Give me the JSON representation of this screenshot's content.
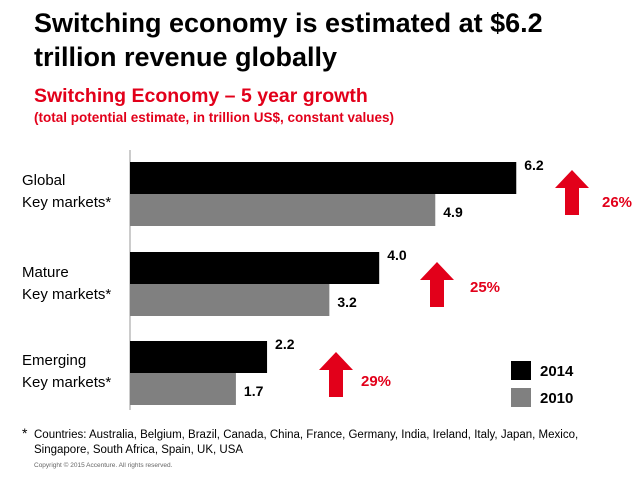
{
  "title": "Switching economy is estimated at $6.2 trillion revenue globally",
  "subtitle": "Switching Economy – 5 year growth",
  "subnote": "(total potential estimate, in trillion US$, constant values)",
  "colors": {
    "series_2014": "#000000",
    "series_2010": "#808080",
    "accent": "#e2001a"
  },
  "chart_data": {
    "type": "bar",
    "orientation": "horizontal",
    "categories": [
      {
        "line1": "Global",
        "line2": "Key markets*"
      },
      {
        "line1": "Mature",
        "line2": "Key markets*"
      },
      {
        "line1": "Emerging",
        "line2": "Key markets*"
      }
    ],
    "series": [
      {
        "name": "2014",
        "values": [
          6.2,
          4.0,
          2.2
        ],
        "labels": [
          "6.2",
          "4.0",
          "2.2"
        ]
      },
      {
        "name": "2010",
        "values": [
          4.9,
          3.2,
          1.7
        ],
        "labels": [
          "4.9",
          "3.2",
          "1.7"
        ]
      }
    ],
    "growth": [
      "26%",
      "25%",
      "29%"
    ],
    "xlim": [
      0,
      7
    ],
    "legend_position": "bottom-right"
  },
  "footnote": {
    "marker": "*",
    "text": "Countries: Australia, Belgium, Brazil, Canada, China, France, Germany, India, Ireland, Italy, Japan, Mexico, Singapore, South Africa, Spain, UK, USA"
  },
  "copyright": "Copyright © 2015 Accenture. All rights reserved."
}
